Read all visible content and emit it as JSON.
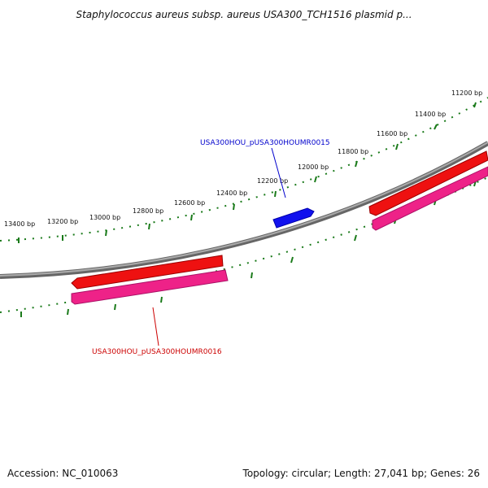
{
  "title": "Staphylococcus aureus subsp. aureus USA300_TCH1516 plasmid p...",
  "footer": {
    "accession": "Accession: NC_010063",
    "summary": "Topology: circular; Length: 27,041 bp; Genes: 26"
  },
  "scale": {
    "labels": [
      "11200 bp",
      "11400 bp",
      "11600 bp",
      "11800 bp",
      "12000 bp",
      "12200 bp",
      "12400 bp",
      "12600 bp",
      "12800 bp",
      "13000 bp",
      "13200 bp",
      "13400 bp"
    ]
  },
  "genes": [
    {
      "name": "USA300HOU_pUSA300HOUMR0015",
      "color": "#0000cc",
      "strand": "forward"
    },
    {
      "name": "USA300HOU_pUSA300HOUMR0016",
      "color": "#cc0000",
      "strand": "reverse"
    }
  ],
  "colors": {
    "backbone": "#888888",
    "tick": "#1a7a1a",
    "cds_red": "#ee1111",
    "cds_pink": "#ee2288",
    "gene_blue": "#1111ee"
  }
}
